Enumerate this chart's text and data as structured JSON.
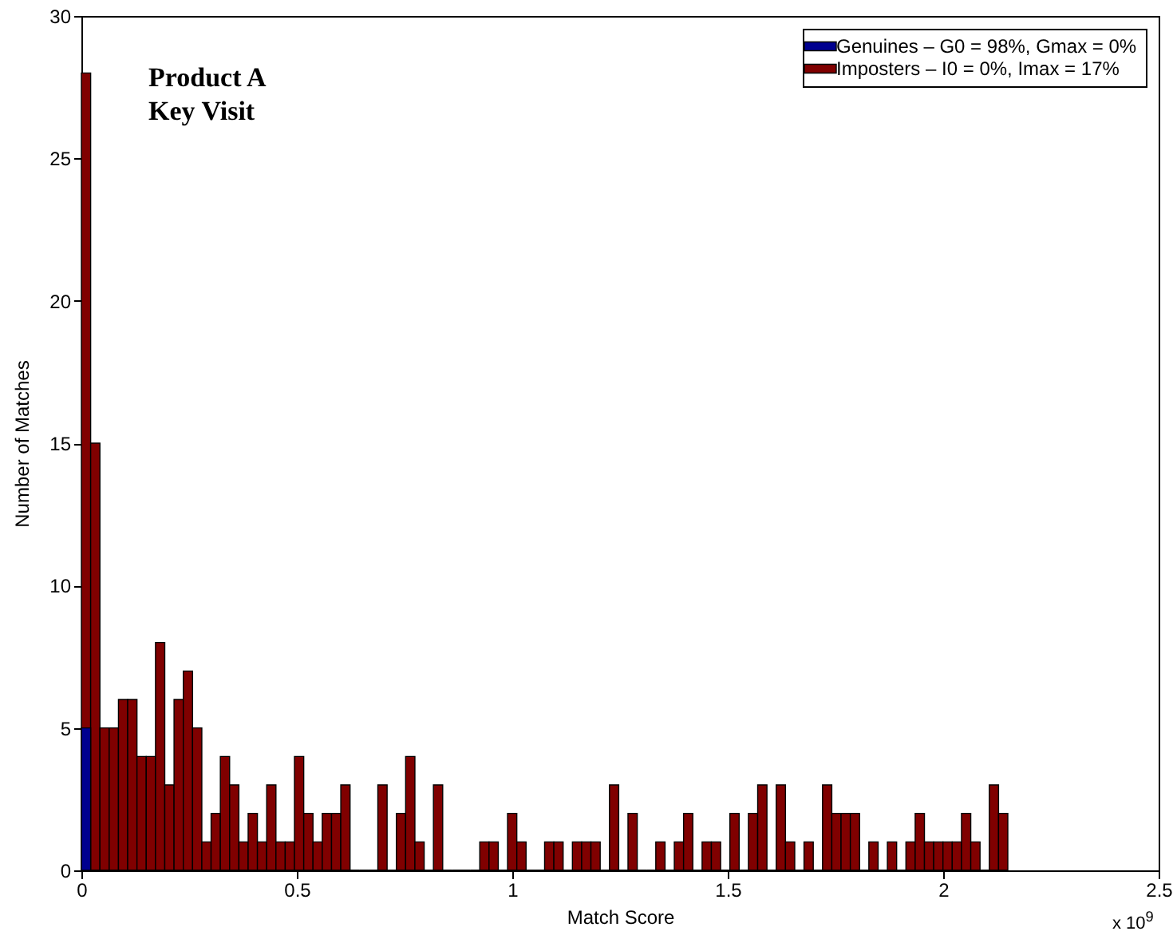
{
  "chart_data": {
    "type": "histogram",
    "xlabel": "Match Score",
    "ylabel": "Number of Matches",
    "annotations": [
      "Product A",
      "Key Visit",
      "x 10$^{9}$"
    ],
    "bins": [
      0,
      0.0215,
      0.043,
      0.0645,
      0.086,
      0.1075,
      0.129,
      0.1505,
      0.172,
      0.1935,
      0.215,
      0.2365,
      0.258,
      0.2795,
      0.301,
      0.3225,
      0.344,
      0.3655,
      0.387,
      0.4085,
      0.43,
      0.4515,
      0.473,
      0.4945,
      0.516,
      0.5375,
      0.559,
      0.5805,
      0.602,
      0.6235,
      0.645,
      0.6665,
      0.688,
      0.7095,
      0.731,
      0.7525,
      0.774,
      0.7955,
      0.817,
      0.8385,
      0.86,
      0.8815,
      0.903,
      0.9245,
      0.946,
      0.9675,
      0.989,
      1.0105,
      1.032,
      1.0535,
      1.075,
      1.0965,
      1.118,
      1.1395,
      1.161,
      1.1825,
      1.204,
      1.2255,
      1.247,
      1.2685,
      1.29,
      1.3115,
      1.333,
      1.3545,
      1.376,
      1.3975,
      1.419,
      1.4405,
      1.462,
      1.4835,
      1.505,
      1.5265,
      1.548,
      1.5695,
      1.591,
      1.6125,
      1.634,
      1.6555,
      1.677,
      1.6985,
      1.72,
      1.7415,
      1.763,
      1.7845,
      1.806,
      1.8275,
      1.849,
      1.8705,
      1.892,
      1.9135,
      1.935,
      1.9565,
      1.978,
      1.9995,
      2.021,
      2.0425,
      2.064,
      2.0855,
      2.107,
      2.1285,
      2.15
    ],
    "series": [
      {
        "name": "Genuines – G0 = 98%, Gmax = 0%",
        "color": "#00008f",
        "values": [
          5,
          0,
          0,
          0,
          0,
          0,
          0,
          0,
          0,
          0,
          0,
          0,
          0,
          0,
          0,
          0,
          0,
          0,
          0,
          0,
          0,
          0,
          0,
          0,
          0,
          0,
          0,
          0,
          0,
          0,
          0,
          0,
          0,
          0,
          0,
          0,
          0,
          0,
          0,
          0,
          0,
          0,
          0,
          0,
          0,
          0,
          0,
          0,
          0,
          0,
          0,
          0,
          0,
          0,
          0,
          0,
          0,
          0,
          0,
          0,
          0,
          0,
          0,
          0,
          0,
          0,
          0,
          0,
          0,
          0,
          0,
          0,
          0,
          0,
          0,
          0,
          0,
          0,
          0,
          0,
          0,
          0,
          0,
          0,
          0,
          0,
          0,
          0,
          0,
          0,
          0,
          0,
          0,
          0,
          0,
          0,
          0,
          0,
          0,
          0
        ]
      },
      {
        "name": "Imposters – I0 = 0%, Imax = 17%",
        "color": "#800000",
        "values": [
          28,
          15,
          5,
          5,
          6,
          6,
          4,
          4,
          8,
          3,
          6,
          7,
          5,
          1,
          2,
          4,
          3,
          1,
          2,
          1,
          3,
          1,
          1,
          4,
          2,
          1,
          2,
          2,
          3,
          0,
          0,
          0,
          3,
          0,
          2,
          4,
          1,
          0,
          3,
          0,
          0,
          0,
          0,
          1,
          1,
          0,
          2,
          1,
          0,
          0,
          1,
          1,
          0,
          1,
          1,
          1,
          0,
          3,
          0,
          2,
          0,
          0,
          1,
          0,
          1,
          2,
          0,
          1,
          1,
          0,
          2,
          0,
          2,
          3,
          0,
          3,
          1,
          0,
          1,
          0,
          3,
          2,
          2,
          2,
          0,
          1,
          0,
          1,
          0,
          1,
          2,
          1,
          1,
          1,
          1,
          2,
          1,
          0,
          3,
          2
        ]
      }
    ],
    "xlim": [
      0,
      2.5
    ],
    "xticks": [
      0,
      0.5,
      1,
      1.5,
      2,
      2.5
    ],
    "ylim": [
      0,
      30
    ],
    "yticks": [
      0,
      5,
      10,
      15,
      20,
      25,
      30
    ],
    "legend": "top right",
    "grid": false
  }
}
